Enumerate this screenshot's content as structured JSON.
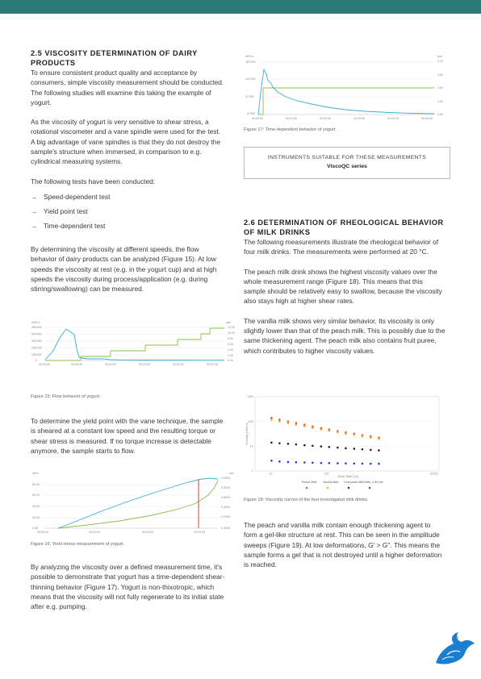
{
  "page": {
    "header_color": "#2a7a78",
    "page_number": "5"
  },
  "left": {
    "heading": "2.5 VISCOSITY DETERMINATION OF DAIRY PRODUCTS",
    "para1": "To ensure consistent product quality and acceptance by consumers, simple viscosity measurement should be conducted. The following studies will examine this taking the example of yogurt.",
    "para2": "As the viscosity of yogurt is very sensitive to shear stress, a rotational viscometer and a vane spindle were used for the test. A big advantage of vane spindles is that they do not destroy the sample's structure when immersed, in comparison to e.g. cylindrical measuring systems.",
    "para3": "The following tests have been conducted:",
    "tests": [
      "Speed-dependent test",
      "Yield point test",
      "Time-dependent test"
    ],
    "para4": "By determining the viscosity at different speeds, the flow behavior of dairy products can be analyzed (Figure 15). At low speeds the viscosity at rest (e.g. in the yogurt cup) and at high speeds the viscosity during process/application (e.g. during stirring/swallowing) can be measured.",
    "fig15_caption": "Figure 15: Flow behavior of yogurt.",
    "para5": "To determine the yield point with the vane technique, the sample is sheared at a constant low speed and the resulting torque or shear stress is measured. If no torque increase is detectable anymore, the sample starts to flow.",
    "fig16_caption": "Figure 16: Yield stress measurement of yogurt.",
    "para6": "By analyzing the viscosity over a defined measurement time, it's possible to demonstrate that yogurt has a time-dependent shear-thinning behavior (Figure 17). Yogurt is non-thixotropic, which means that the viscosity will not fully regenerate to its initial state after e.g. pumping."
  },
  "right": {
    "fig17_caption": "Figure 17: Time-dependent behavior of yogurt.",
    "instruments_title": "INSTRUMENTS SUITABLE FOR THESE MEASUREMENTS",
    "instruments_name": "ViscoQC series",
    "heading": "2.6 DETERMINATION OF RHEOLOGICAL BEHAVIOR OF MILK DRINKS",
    "para1": "The following measurements illustrate the rheological behavior of four milk drinks. The measurements were performed at 20 °C.",
    "para2": "The peach milk drink shows the highest viscosity values over the whole measurement range (Figure 18). This means that this sample should be relatively easy to swallow, because the viscosity also stays high at higher shear rates.",
    "para3": "The vanilla milk shows very similar behavior. Its viscosity is only slightly lower than that of the peach milk. This is possibly due to the same thickening agent. The peach milk also contains fruit puree, which contributes to higher viscosity values.",
    "fig18_caption": "Figure 18: Viscosity curves of the four investigated milk drinks.",
    "para4": "The peach and vanilla milk contain enough thickening agent to form a gel-like structure at rest. This can be seen in the amplitude sweeps (Figure 19). At low deformations, G' > G''. This means the sample forms a gel that is not destroyed until a higher deformation is reached."
  },
  "fig15": {
    "y_unit": "mPa·s",
    "y2_unit": "rpm",
    "y_ticks": [
      "500'000",
      "400'000",
      "300'000",
      "200'000",
      "100'000",
      "0"
    ],
    "y2_ticks": [
      "12.00",
      "10.00",
      "8.00",
      "6.00",
      "4.00",
      "2.00",
      "0.00"
    ],
    "x_ticks": [
      "00:00:00",
      "00:00:30",
      "00:01:00",
      "00:01:30",
      "00:02:00",
      "00:02:30"
    ],
    "viscosity_color": "#3ab0d0",
    "speed_color": "#8cc04a"
  },
  "fig16": {
    "y_unit": "mPa",
    "y2_unit": "rad",
    "y_ticks": [
      "80.00",
      "60.00",
      "40.00",
      "20.00",
      "0.00"
    ],
    "y2_ticks": [
      "1.0000",
      "0.8000",
      "0.6000",
      "0.4000",
      "0.2000",
      "0.0000"
    ],
    "x_ticks": [
      "00:00:00",
      "00:01:00",
      "00:02:00",
      "00:03:00"
    ],
    "stress_color": "#3ab0d0",
    "deflection_color": "#8cc04a",
    "marker_color": "#c0392b"
  },
  "fig17": {
    "y_unit": "mPa·s",
    "y2_unit": "rpm",
    "y_ticks": [
      "187'000",
      "141'000",
      "97'000",
      "47000"
    ],
    "y2_ticks": [
      "3.10",
      "3.00",
      "2.00",
      "1.00",
      "0.00"
    ],
    "x_ticks": [
      "00:00:00",
      "00:01:00",
      "00:02:00",
      "00:03:00",
      "00:04:00",
      "00:05:00"
    ],
    "viscosity_color": "#3ab0d0",
    "speed_color": "#8cc04a"
  },
  "chart_data": {
    "type": "scatter",
    "xlabel": "Shear Rate [1/s]",
    "ylabel": "Viscosity [mPa·s]",
    "log_x": true,
    "log_y": true,
    "y_ticks": [
      "1000",
      "100",
      "10",
      "1"
    ],
    "x_ticks": [
      "10",
      "100",
      "10'000"
    ],
    "x": [
      10,
      14,
      20,
      28,
      40,
      56,
      80,
      112,
      160,
      225,
      320,
      450,
      640,
      900
    ],
    "series": [
      {
        "name": "Peach Milk",
        "color": "#e74c3c",
        "values": [
          140,
          118,
          100,
          86,
          74,
          63,
          54,
          47,
          41,
          36,
          32,
          28,
          25,
          22
        ]
      },
      {
        "name": "Vanilla Milk",
        "color": "#f5a623",
        "values": [
          118,
          100,
          86,
          74,
          64,
          55,
          48,
          42,
          37,
          32,
          29,
          25,
          22,
          20
        ]
      },
      {
        "name": "Chocolate Milk",
        "color": "#3a1c1c",
        "values": [
          14,
          13.2,
          12.5,
          11.8,
          11,
          10.4,
          9.8,
          9.3,
          8.8,
          8.3,
          7.9,
          7.5,
          7.1,
          6.8
        ]
      },
      {
        "name": "Milk, 1.5% fat",
        "color": "#2040d0",
        "values": [
          2.6,
          2.4,
          2.3,
          2.25,
          2.2,
          2.15,
          2.1,
          2.08,
          2.05,
          2.02,
          2.0,
          1.98,
          1.96,
          1.95
        ]
      }
    ]
  }
}
